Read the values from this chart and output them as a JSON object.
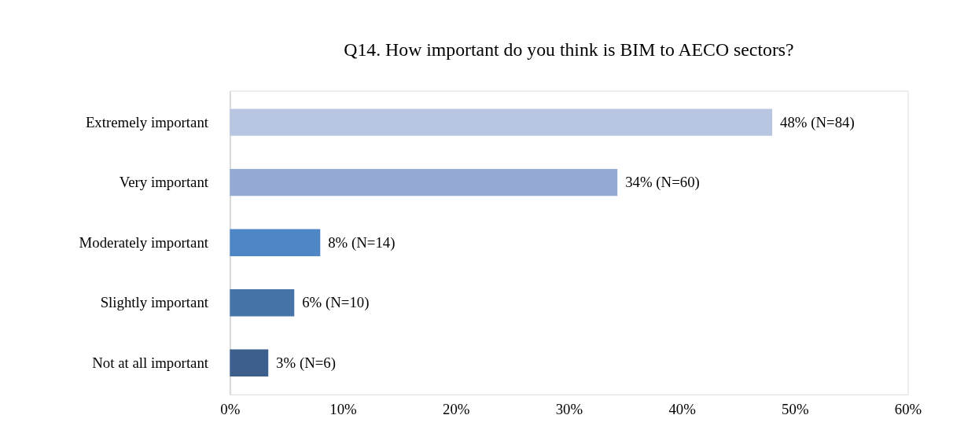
{
  "chart_data": {
    "type": "bar",
    "orientation": "horizontal",
    "title": "Q14. How important do you think is BIM to AECO sectors?",
    "categories": [
      "Extremely important",
      "Very important",
      "Moderately important",
      "Slightly important",
      "Not at all important"
    ],
    "values": [
      48,
      34.3,
      8,
      5.7,
      3.4
    ],
    "colors": [
      "#b9c6e2",
      "#94a9d3",
      "#4f86c6",
      "#4673a8",
      "#3c5f8d"
    ],
    "value_labels": [
      "48% (N=84)",
      "34% (N=60)",
      "8% (N=14)",
      "6% (N=10)",
      "3% (N=6)"
    ],
    "xlim": [
      0,
      60
    ],
    "xticks": [
      {
        "value": 0,
        "label": "0%"
      },
      {
        "value": 10,
        "label": "10%"
      },
      {
        "value": 20,
        "label": "20%"
      },
      {
        "value": 30,
        "label": "30%"
      },
      {
        "value": 40,
        "label": "40%"
      },
      {
        "value": 50,
        "label": "50%"
      },
      {
        "value": 60,
        "label": "60%"
      }
    ],
    "grid": false
  }
}
